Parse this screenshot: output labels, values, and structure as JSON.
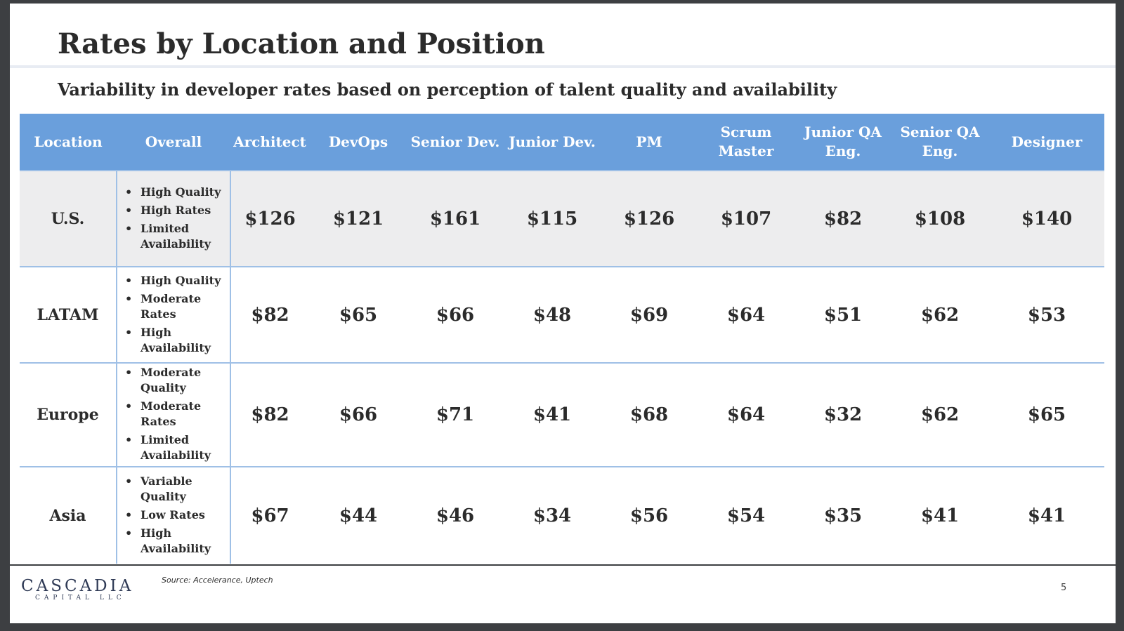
{
  "title": "Rates by Location and Position",
  "subtitle": "Variability in developer rates based on perception of talent quality and availability",
  "table": {
    "headers": [
      "Location",
      "Overall",
      "Architect",
      "DevOps",
      "Senior Dev.",
      "Junior Dev.",
      "PM",
      "Scrum Master",
      "Junior QA Eng.",
      "Senior QA Eng.",
      "Designer"
    ],
    "rows": [
      {
        "location": "U.S.",
        "overall": [
          "High Quality",
          "High Rates",
          "Limited Availability"
        ],
        "rates": [
          "$126",
          "$121",
          "$161",
          "$115",
          "$126",
          "$107",
          "$82",
          "$108",
          "$140"
        ]
      },
      {
        "location": "LATAM",
        "overall": [
          "High Quality",
          "Moderate Rates",
          "High Availability"
        ],
        "rates": [
          "$82",
          "$65",
          "$66",
          "$48",
          "$69",
          "$64",
          "$51",
          "$62",
          "$53"
        ]
      },
      {
        "location": "Europe",
        "overall": [
          "Moderate Quality",
          "Moderate Rates",
          "Limited Availability"
        ],
        "rates": [
          "$82",
          "$66",
          "$71",
          "$41",
          "$68",
          "$64",
          "$32",
          "$62",
          "$65"
        ]
      },
      {
        "location": "Asia",
        "overall": [
          "Variable Quality",
          "Low Rates",
          "High Availability"
        ],
        "rates": [
          "$67",
          "$44",
          "$46",
          "$34",
          "$56",
          "$54",
          "$35",
          "$41",
          "$41"
        ]
      }
    ]
  },
  "logo": {
    "name": "CASCADIA",
    "sub": "CAPITAL LLC"
  },
  "source": "Source: Accelerance, Uptech",
  "page_number": "5",
  "colors": {
    "header_bg": "#6a9fdc",
    "row_shade": "#ededee",
    "divider": "#9fc0e6",
    "text": "#2b2b2b"
  }
}
